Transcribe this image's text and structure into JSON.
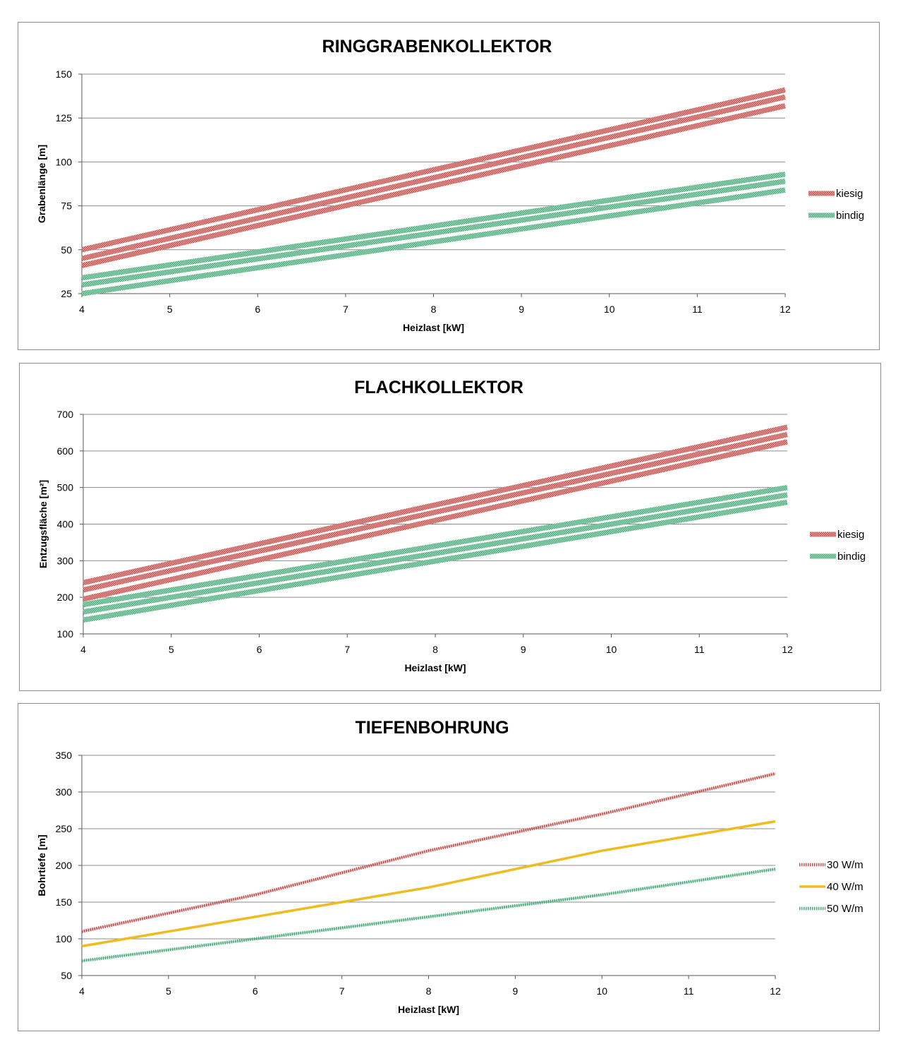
{
  "colors": {
    "kiesig": "#c0504d",
    "kiesig_light": "#e6a5a3",
    "bindig": "#4aaa7c",
    "bindig_light": "#a6d8be",
    "w30": "#c0504d",
    "w40": "#f0bb1e",
    "w50": "#4aaa7c",
    "grid": "#8c8c8c",
    "axis": "#595959"
  },
  "chart_data": [
    {
      "type": "area",
      "title": "RINGGRABENKOLLEKTOR",
      "xlabel": "Heizlast [kW]",
      "ylabel": "Grabenlänge [m]",
      "xlim": [
        4,
        12
      ],
      "ylim": [
        25,
        150
      ],
      "xticks": [
        "4",
        "5",
        "6",
        "7",
        "8",
        "9",
        "10",
        "11",
        "12"
      ],
      "yticks": [
        "150",
        "125",
        "100",
        "75",
        "50",
        "25"
      ],
      "grid": true,
      "legend": "right",
      "x": [
        4,
        12
      ],
      "series": [
        {
          "name": "kiesig",
          "color": "kiesig",
          "bands": [
            [
              50,
              141
            ],
            [
              45,
              137
            ],
            [
              41,
              132
            ]
          ]
        },
        {
          "name": "bindig",
          "color": "bindig",
          "bands": [
            [
              34,
              93
            ],
            [
              30,
              89
            ],
            [
              25,
              84
            ]
          ]
        }
      ]
    },
    {
      "type": "area",
      "title": "FLACHKOLLEKTOR",
      "xlabel": "Heizlast [kW]",
      "ylabel": "Entzugsfläche [m²]",
      "xlim": [
        4,
        12
      ],
      "ylim": [
        100,
        700
      ],
      "xticks": [
        "4",
        "5",
        "6",
        "7",
        "8",
        "9",
        "10",
        "11",
        "12"
      ],
      "yticks": [
        "700",
        "600",
        "500",
        "400",
        "300",
        "200",
        "100"
      ],
      "grid": true,
      "legend": "right",
      "x": [
        4,
        12
      ],
      "series": [
        {
          "name": "kiesig",
          "color": "kiesig",
          "bands": [
            [
              240,
              665
            ],
            [
              220,
              645
            ],
            [
              195,
              625
            ]
          ]
        },
        {
          "name": "bindig",
          "color": "bindig",
          "bands": [
            [
              180,
              500
            ],
            [
              160,
              480
            ],
            [
              138,
              460
            ]
          ]
        }
      ]
    },
    {
      "type": "line",
      "title": "TIEFENBOHRUNG",
      "xlabel": "Heizlast [kW]",
      "ylabel": "Bohrtiefe [m]",
      "xlim": [
        4,
        12
      ],
      "ylim": [
        50,
        350
      ],
      "xticks": [
        "4",
        "5",
        "6",
        "7",
        "8",
        "9",
        "10",
        "11",
        "12"
      ],
      "yticks": [
        "350",
        "300",
        "250",
        "200",
        "150",
        "100",
        "50"
      ],
      "grid": true,
      "legend": "right",
      "x": [
        4,
        6,
        8,
        10,
        12
      ],
      "series": [
        {
          "name": "30 W/m",
          "color": "w30",
          "values": [
            110,
            160,
            220,
            270,
            325
          ]
        },
        {
          "name": "40 W/m",
          "color": "w40",
          "values": [
            90,
            130,
            170,
            220,
            260
          ]
        },
        {
          "name": "50 W/m",
          "color": "w50",
          "values": [
            70,
            100,
            130,
            160,
            195
          ]
        }
      ]
    }
  ]
}
